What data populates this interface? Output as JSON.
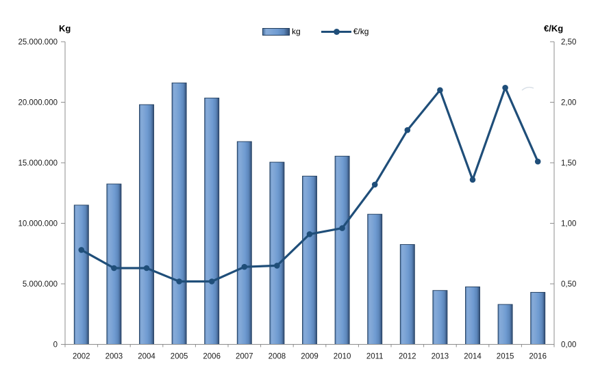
{
  "chart_data": {
    "type": "bar+line",
    "categories": [
      "2002",
      "2003",
      "2004",
      "2005",
      "2006",
      "2007",
      "2008",
      "2009",
      "2010",
      "2011",
      "2012",
      "2013",
      "2014",
      "2015",
      "2016"
    ],
    "series": [
      {
        "name": "kg",
        "type": "bar",
        "axis": "left",
        "values": [
          11500000,
          13250000,
          19800000,
          21600000,
          20350000,
          16750000,
          15050000,
          13900000,
          15550000,
          10750000,
          8250000,
          4450000,
          4750000,
          3300000,
          4300000
        ]
      },
      {
        "name": "€/kg",
        "type": "line",
        "axis": "right",
        "values": [
          0.78,
          0.63,
          0.63,
          0.52,
          0.52,
          0.64,
          0.65,
          0.91,
          0.96,
          1.32,
          1.77,
          2.1,
          1.36,
          2.12,
          1.51
        ]
      }
    ],
    "left_axis": {
      "title": "Kg",
      "min": 0,
      "max": 25000000,
      "tick_labels": [
        "0",
        "5.000.000",
        "10.000.000",
        "15.000.000",
        "20.000.000",
        "25.000.000"
      ]
    },
    "right_axis": {
      "title": "€/Kg",
      "min": 0,
      "max": 2.5,
      "tick_labels": [
        "0,00",
        "0,50",
        "1,00",
        "1,50",
        "2,00",
        "2,50"
      ]
    },
    "legend": {
      "position": "top",
      "entries": [
        "kg",
        "€/kg"
      ]
    },
    "grid": false,
    "colors": {
      "bar_fill_main": "#6f9bd1",
      "bar_fill_light": "#86abd9",
      "bar_fill_dark": "#35517a",
      "bar_outline": "#203c5c",
      "line": "#1f4e79",
      "axis": "#8c8c8c",
      "tick_text": "#1a1a1a"
    }
  }
}
